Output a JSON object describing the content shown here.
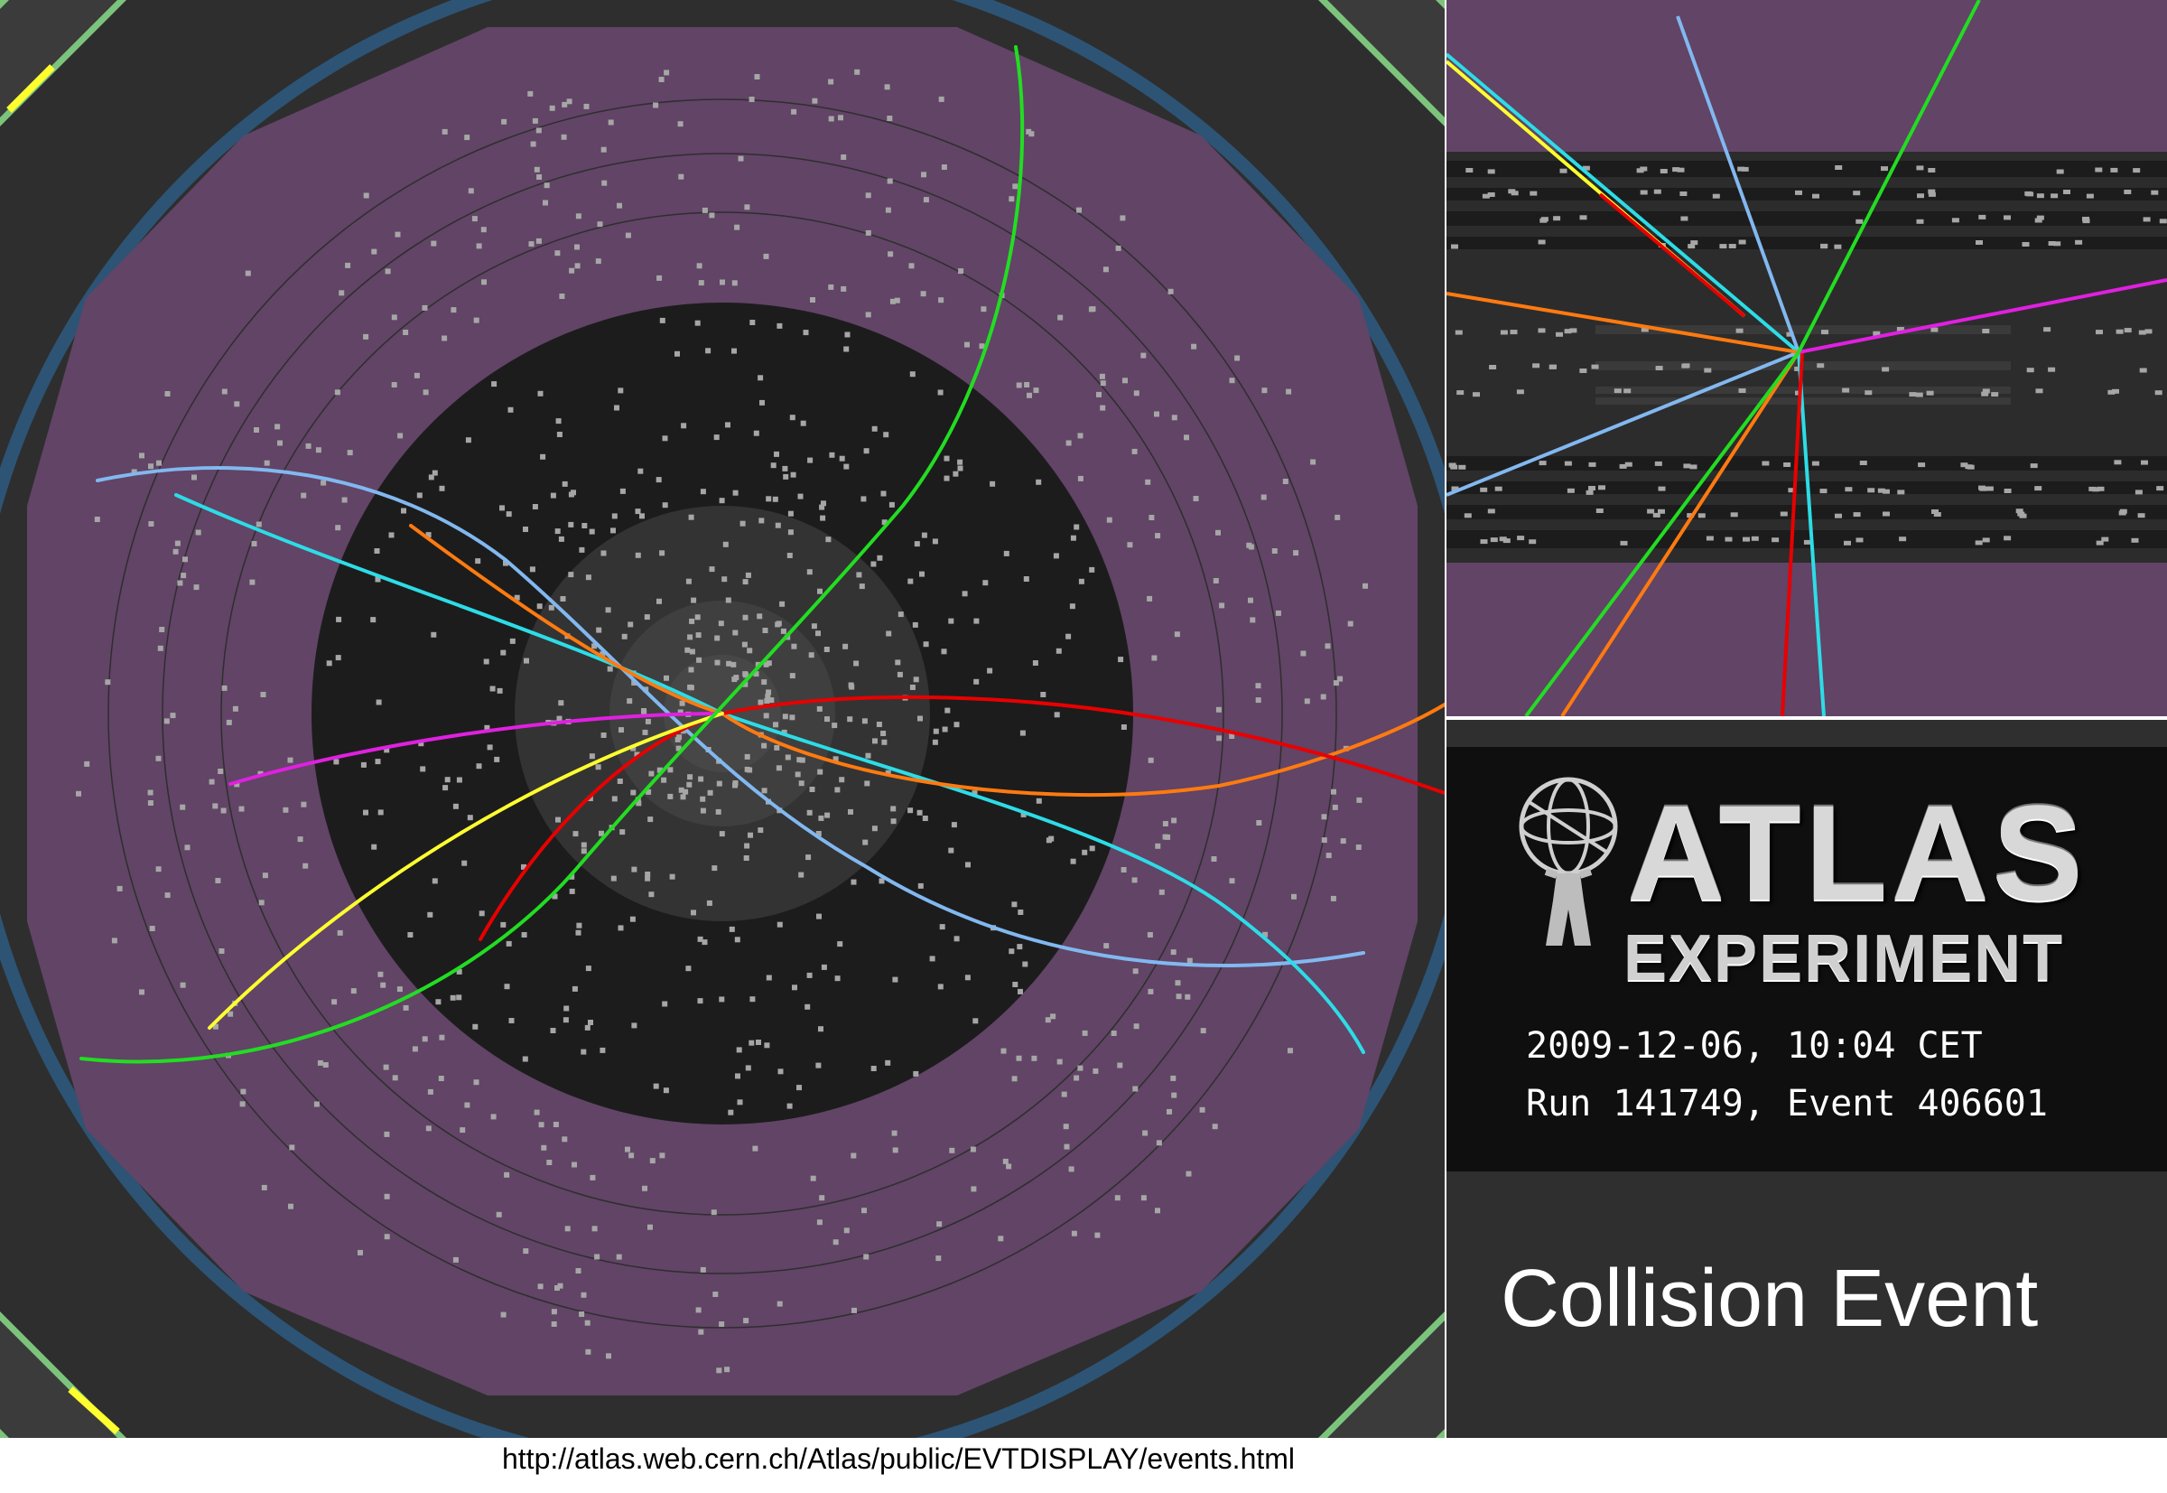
{
  "logo": {
    "title": "ATLAS",
    "subtitle": "EXPERIMENT"
  },
  "event": {
    "date_line": "2009-12-06, 10:04 CET",
    "run_line": "Run 141749, Event 406601"
  },
  "caption": "Collision Event",
  "source_url": "http://atlas.web.cern.ch/Atlas/public/EVTDISPLAY/events.html",
  "colors": {
    "calorimeter": "#614466",
    "tracker_background": "#1c1c1c",
    "background": "#2e2e2e",
    "muon_ring": "#2d5475",
    "outer_corner": "#7cc47c",
    "hit": "#a6a6a6",
    "track_light_blue": "#82b8f0",
    "track_cyan": "#2ddce6",
    "track_orange": "#ff7a10",
    "track_red": "#e80000",
    "track_magenta": "#e020e0",
    "track_yellow": "#ffff30",
    "track_green": "#22dd22"
  },
  "icons": {
    "logo": "atlas-figure-icon"
  }
}
